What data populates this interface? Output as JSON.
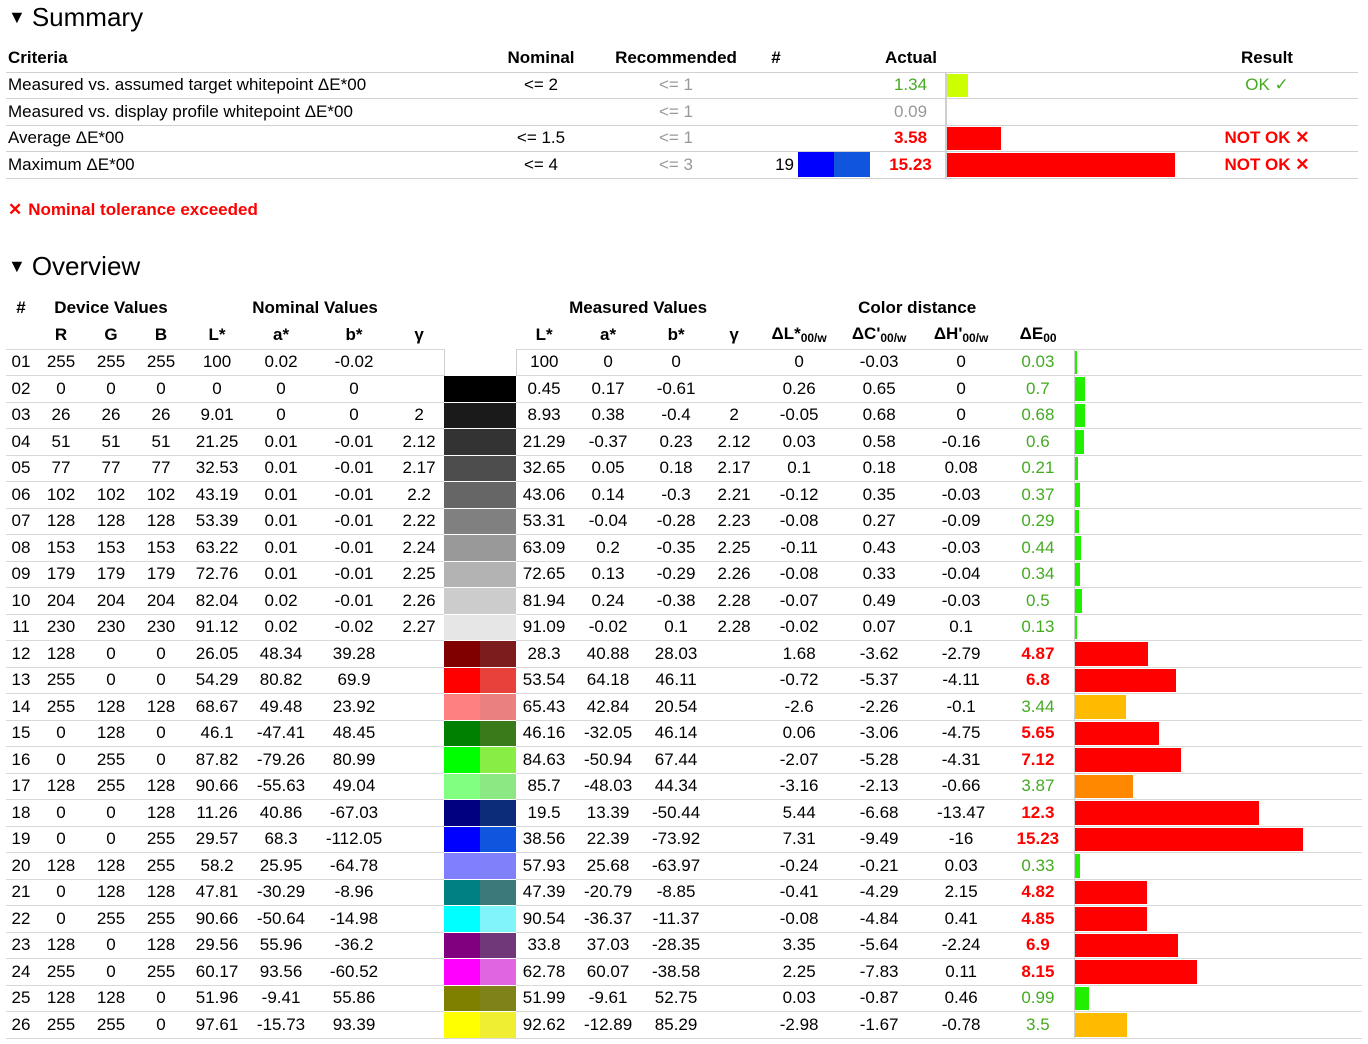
{
  "summary": {
    "heading": "Summary",
    "columns": {
      "criteria": "Criteria",
      "nominal": "Nominal",
      "recommended": "Recommended",
      "hash": "#",
      "actual": "Actual",
      "result": "Result"
    },
    "rows": [
      {
        "criteria": "Measured vs. assumed target whitepoint ΔE*00",
        "nominal": "<= 2",
        "recommended": "<= 1",
        "hash": "",
        "actual": "1.34",
        "actual_status": "ok",
        "bar_fraction": 0.09,
        "bar_color": "#ccff00",
        "result": "OK ✓",
        "result_status": "ok"
      },
      {
        "criteria": "Measured vs. display profile whitepoint ΔE*00",
        "nominal": "",
        "recommended": "<= 1",
        "hash": "",
        "actual": "0.09",
        "actual_status": "gray",
        "bar_fraction": 0.0,
        "bar_color": "#cccccc",
        "result": "",
        "result_status": ""
      },
      {
        "criteria": "Average ΔE*00",
        "nominal": "<= 1.5",
        "recommended": "<= 1",
        "hash": "",
        "actual": "3.58",
        "actual_status": "bad",
        "bar_fraction": 0.235,
        "bar_color": "#ff0000",
        "result": "NOT OK ✕",
        "result_status": "bad"
      },
      {
        "criteria": "Maximum ΔE*00",
        "nominal": "<= 4",
        "recommended": "<= 3",
        "hash": "19",
        "swatch": [
          "#0000ff",
          "#1055dd"
        ],
        "actual": "15.23",
        "actual_status": "bad",
        "bar_fraction": 1.0,
        "bar_color": "#ff0000",
        "result": "NOT OK ✕",
        "result_status": "bad"
      }
    ],
    "status_icon": "✕",
    "status_text": "Nominal tolerance exceeded"
  },
  "overview": {
    "heading": "Overview",
    "group_headers": {
      "hash": "#",
      "device": "Device Values",
      "nominal": "Nominal Values",
      "measured": "Measured Values",
      "distance": "Color distance"
    },
    "sub_headers": {
      "r": "R",
      "g": "G",
      "b": "B",
      "nl": "L*",
      "na": "a*",
      "nb": "b*",
      "ngamma": "γ",
      "ml": "L*",
      "ma": "a*",
      "mb": "b*",
      "mgamma": "γ",
      "dl": "ΔL*",
      "dc": "ΔC'",
      "dh": "ΔH'",
      "de": "ΔE",
      "sub_w": "00/w",
      "sub_de": "00"
    },
    "bar_scale_max": 15.23,
    "rows": [
      {
        "id": "01",
        "r": "255",
        "g": "255",
        "b": "255",
        "nl": "100",
        "na": "0.02",
        "nb": "-0.02",
        "ng": "",
        "sw1": "#ffffff",
        "sw2": "#ffffff",
        "ml": "100",
        "ma": "0",
        "mb": "0",
        "mg": "",
        "dl": "0",
        "dc": "-0.03",
        "dh": "0",
        "de": "0.03",
        "de_value": 0.03,
        "status": "ok",
        "bar_color": "#22ee00"
      },
      {
        "id": "02",
        "r": "0",
        "g": "0",
        "b": "0",
        "nl": "0",
        "na": "0",
        "nb": "0",
        "ng": "",
        "sw1": "#000000",
        "sw2": "#000000",
        "ml": "0.45",
        "ma": "0.17",
        "mb": "-0.61",
        "mg": "",
        "dl": "0.26",
        "dc": "0.65",
        "dh": "0",
        "de": "0.7",
        "de_value": 0.7,
        "status": "ok",
        "bar_color": "#22ee00"
      },
      {
        "id": "03",
        "r": "26",
        "g": "26",
        "b": "26",
        "nl": "9.01",
        "na": "0",
        "nb": "0",
        "ng": "2",
        "sw1": "#1a1a1a",
        "sw2": "#1a1a1a",
        "ml": "8.93",
        "ma": "0.38",
        "mb": "-0.4",
        "mg": "2",
        "dl": "-0.05",
        "dc": "0.68",
        "dh": "0",
        "de": "0.68",
        "de_value": 0.68,
        "status": "ok",
        "bar_color": "#22ee00"
      },
      {
        "id": "04",
        "r": "51",
        "g": "51",
        "b": "51",
        "nl": "21.25",
        "na": "0.01",
        "nb": "-0.01",
        "ng": "2.12",
        "sw1": "#333333",
        "sw2": "#333333",
        "ml": "21.29",
        "ma": "-0.37",
        "mb": "0.23",
        "mg": "2.12",
        "dl": "0.03",
        "dc": "0.58",
        "dh": "-0.16",
        "de": "0.6",
        "de_value": 0.6,
        "status": "ok",
        "bar_color": "#22ee00"
      },
      {
        "id": "05",
        "r": "77",
        "g": "77",
        "b": "77",
        "nl": "32.53",
        "na": "0.01",
        "nb": "-0.01",
        "ng": "2.17",
        "sw1": "#4d4d4d",
        "sw2": "#4d4d4d",
        "ml": "32.65",
        "ma": "0.05",
        "mb": "0.18",
        "mg": "2.17",
        "dl": "0.1",
        "dc": "0.18",
        "dh": "0.08",
        "de": "0.21",
        "de_value": 0.21,
        "status": "ok",
        "bar_color": "#22ee00"
      },
      {
        "id": "06",
        "r": "102",
        "g": "102",
        "b": "102",
        "nl": "43.19",
        "na": "0.01",
        "nb": "-0.01",
        "ng": "2.2",
        "sw1": "#666666",
        "sw2": "#666666",
        "ml": "43.06",
        "ma": "0.14",
        "mb": "-0.3",
        "mg": "2.21",
        "dl": "-0.12",
        "dc": "0.35",
        "dh": "-0.03",
        "de": "0.37",
        "de_value": 0.37,
        "status": "ok",
        "bar_color": "#22ee00"
      },
      {
        "id": "07",
        "r": "128",
        "g": "128",
        "b": "128",
        "nl": "53.39",
        "na": "0.01",
        "nb": "-0.01",
        "ng": "2.22",
        "sw1": "#808080",
        "sw2": "#808080",
        "ml": "53.31",
        "ma": "-0.04",
        "mb": "-0.28",
        "mg": "2.23",
        "dl": "-0.08",
        "dc": "0.27",
        "dh": "-0.09",
        "de": "0.29",
        "de_value": 0.29,
        "status": "ok",
        "bar_color": "#22ee00"
      },
      {
        "id": "08",
        "r": "153",
        "g": "153",
        "b": "153",
        "nl": "63.22",
        "na": "0.01",
        "nb": "-0.01",
        "ng": "2.24",
        "sw1": "#999999",
        "sw2": "#999999",
        "ml": "63.09",
        "ma": "0.2",
        "mb": "-0.35",
        "mg": "2.25",
        "dl": "-0.11",
        "dc": "0.43",
        "dh": "-0.03",
        "de": "0.44",
        "de_value": 0.44,
        "status": "ok",
        "bar_color": "#22ee00"
      },
      {
        "id": "09",
        "r": "179",
        "g": "179",
        "b": "179",
        "nl": "72.76",
        "na": "0.01",
        "nb": "-0.01",
        "ng": "2.25",
        "sw1": "#b3b3b3",
        "sw2": "#b3b3b3",
        "ml": "72.65",
        "ma": "0.13",
        "mb": "-0.29",
        "mg": "2.26",
        "dl": "-0.08",
        "dc": "0.33",
        "dh": "-0.04",
        "de": "0.34",
        "de_value": 0.34,
        "status": "ok",
        "bar_color": "#22ee00"
      },
      {
        "id": "10",
        "r": "204",
        "g": "204",
        "b": "204",
        "nl": "82.04",
        "na": "0.02",
        "nb": "-0.01",
        "ng": "2.26",
        "sw1": "#cccccc",
        "sw2": "#cccccc",
        "ml": "81.94",
        "ma": "0.24",
        "mb": "-0.38",
        "mg": "2.28",
        "dl": "-0.07",
        "dc": "0.49",
        "dh": "-0.03",
        "de": "0.5",
        "de_value": 0.5,
        "status": "ok",
        "bar_color": "#22ee00"
      },
      {
        "id": "11",
        "r": "230",
        "g": "230",
        "b": "230",
        "nl": "91.12",
        "na": "0.02",
        "nb": "-0.02",
        "ng": "2.27",
        "sw1": "#e6e6e6",
        "sw2": "#e6e6e6",
        "ml": "91.09",
        "ma": "-0.02",
        "mb": "0.1",
        "mg": "2.28",
        "dl": "-0.02",
        "dc": "0.07",
        "dh": "0.1",
        "de": "0.13",
        "de_value": 0.13,
        "status": "ok",
        "bar_color": "#22ee00"
      },
      {
        "id": "12",
        "r": "128",
        "g": "0",
        "b": "0",
        "nl": "26.05",
        "na": "48.34",
        "nb": "39.28",
        "ng": "",
        "sw1": "#800000",
        "sw2": "#7d1c1c",
        "ml": "28.3",
        "ma": "40.88",
        "mb": "28.03",
        "mg": "",
        "dl": "1.68",
        "dc": "-3.62",
        "dh": "-2.79",
        "de": "4.87",
        "de_value": 4.87,
        "status": "bad",
        "bar_color": "#ff0000"
      },
      {
        "id": "13",
        "r": "255",
        "g": "0",
        "b": "0",
        "nl": "54.29",
        "na": "80.82",
        "nb": "69.9",
        "ng": "",
        "sw1": "#ff0000",
        "sw2": "#e8403a",
        "ml": "53.54",
        "ma": "64.18",
        "mb": "46.11",
        "mg": "",
        "dl": "-0.72",
        "dc": "-5.37",
        "dh": "-4.11",
        "de": "6.8",
        "de_value": 6.8,
        "status": "bad",
        "bar_color": "#ff0000"
      },
      {
        "id": "14",
        "r": "255",
        "g": "128",
        "b": "128",
        "nl": "68.67",
        "na": "49.48",
        "nb": "23.92",
        "ng": "",
        "sw1": "#ff8080",
        "sw2": "#ea8080",
        "ml": "65.43",
        "ma": "42.84",
        "mb": "20.54",
        "mg": "",
        "dl": "-2.6",
        "dc": "-2.26",
        "dh": "-0.1",
        "de": "3.44",
        "de_value": 3.44,
        "status": "ok",
        "bar_color": "#ffbb00"
      },
      {
        "id": "15",
        "r": "0",
        "g": "128",
        "b": "0",
        "nl": "46.1",
        "na": "-47.41",
        "nb": "48.45",
        "ng": "",
        "sw1": "#008000",
        "sw2": "#3b7a1a",
        "ml": "46.16",
        "ma": "-32.05",
        "mb": "46.14",
        "mg": "",
        "dl": "0.06",
        "dc": "-3.06",
        "dh": "-4.75",
        "de": "5.65",
        "de_value": 5.65,
        "status": "bad",
        "bar_color": "#ff0000"
      },
      {
        "id": "16",
        "r": "0",
        "g": "255",
        "b": "0",
        "nl": "87.82",
        "na": "-79.26",
        "nb": "80.99",
        "ng": "",
        "sw1": "#00ff00",
        "sw2": "#88ee44",
        "ml": "84.63",
        "ma": "-50.94",
        "mb": "67.44",
        "mg": "",
        "dl": "-2.07",
        "dc": "-5.28",
        "dh": "-4.31",
        "de": "7.12",
        "de_value": 7.12,
        "status": "bad",
        "bar_color": "#ff0000"
      },
      {
        "id": "17",
        "r": "128",
        "g": "255",
        "b": "128",
        "nl": "90.66",
        "na": "-55.63",
        "nb": "49.04",
        "ng": "",
        "sw1": "#80ff80",
        "sw2": "#8ce882",
        "ml": "85.7",
        "ma": "-48.03",
        "mb": "44.34",
        "mg": "",
        "dl": "-3.16",
        "dc": "-2.13",
        "dh": "-0.66",
        "de": "3.87",
        "de_value": 3.87,
        "status": "ok",
        "bar_color": "#ff8800"
      },
      {
        "id": "18",
        "r": "0",
        "g": "0",
        "b": "128",
        "nl": "11.26",
        "na": "40.86",
        "nb": "-67.03",
        "ng": "",
        "sw1": "#000080",
        "sw2": "#0c2b78",
        "ml": "19.5",
        "ma": "13.39",
        "mb": "-50.44",
        "mg": "",
        "dl": "5.44",
        "dc": "-6.68",
        "dh": "-13.47",
        "de": "12.3",
        "de_value": 12.3,
        "status": "bad",
        "bar_color": "#ff0000"
      },
      {
        "id": "19",
        "r": "0",
        "g": "0",
        "b": "255",
        "nl": "29.57",
        "na": "68.3",
        "nb": "-112.05",
        "ng": "",
        "sw1": "#0000ff",
        "sw2": "#1055dd",
        "ml": "38.56",
        "ma": "22.39",
        "mb": "-73.92",
        "mg": "",
        "dl": "7.31",
        "dc": "-9.49",
        "dh": "-16",
        "de": "15.23",
        "de_value": 15.23,
        "status": "bad",
        "bar_color": "#ff0000"
      },
      {
        "id": "20",
        "r": "128",
        "g": "128",
        "b": "255",
        "nl": "58.2",
        "na": "25.95",
        "nb": "-64.78",
        "ng": "",
        "sw1": "#8080ff",
        "sw2": "#8080fb",
        "ml": "57.93",
        "ma": "25.68",
        "mb": "-63.97",
        "mg": "",
        "dl": "-0.24",
        "dc": "-0.21",
        "dh": "0.03",
        "de": "0.33",
        "de_value": 0.33,
        "status": "ok",
        "bar_color": "#22ee00"
      },
      {
        "id": "21",
        "r": "0",
        "g": "128",
        "b": "128",
        "nl": "47.81",
        "na": "-30.29",
        "nb": "-8.96",
        "ng": "",
        "sw1": "#008080",
        "sw2": "#3a7a7a",
        "ml": "47.39",
        "ma": "-20.79",
        "mb": "-8.85",
        "mg": "",
        "dl": "-0.41",
        "dc": "-4.29",
        "dh": "2.15",
        "de": "4.82",
        "de_value": 4.82,
        "status": "bad",
        "bar_color": "#ff0000"
      },
      {
        "id": "22",
        "r": "0",
        "g": "255",
        "b": "255",
        "nl": "90.66",
        "na": "-50.64",
        "nb": "-14.98",
        "ng": "",
        "sw1": "#00ffff",
        "sw2": "#80f4f8",
        "ml": "90.54",
        "ma": "-36.37",
        "mb": "-11.37",
        "mg": "",
        "dl": "-0.08",
        "dc": "-4.84",
        "dh": "0.41",
        "de": "4.85",
        "de_value": 4.85,
        "status": "bad",
        "bar_color": "#ff0000"
      },
      {
        "id": "23",
        "r": "128",
        "g": "0",
        "b": "128",
        "nl": "29.56",
        "na": "55.96",
        "nb": "-36.2",
        "ng": "",
        "sw1": "#800080",
        "sw2": "#713879",
        "ml": "33.8",
        "ma": "37.03",
        "mb": "-28.35",
        "mg": "",
        "dl": "3.35",
        "dc": "-5.64",
        "dh": "-2.24",
        "de": "6.9",
        "de_value": 6.9,
        "status": "bad",
        "bar_color": "#ff0000"
      },
      {
        "id": "24",
        "r": "255",
        "g": "0",
        "b": "255",
        "nl": "60.17",
        "na": "93.56",
        "nb": "-60.52",
        "ng": "",
        "sw1": "#ff00ff",
        "sw2": "#e065e0",
        "ml": "62.78",
        "ma": "60.07",
        "mb": "-38.58",
        "mg": "",
        "dl": "2.25",
        "dc": "-7.83",
        "dh": "0.11",
        "de": "8.15",
        "de_value": 8.15,
        "status": "bad",
        "bar_color": "#ff0000"
      },
      {
        "id": "25",
        "r": "128",
        "g": "128",
        "b": "0",
        "nl": "51.96",
        "na": "-9.41",
        "nb": "55.86",
        "ng": "",
        "sw1": "#808000",
        "sw2": "#7f8218",
        "ml": "51.99",
        "ma": "-9.61",
        "mb": "52.75",
        "mg": "",
        "dl": "0.03",
        "dc": "-0.87",
        "dh": "0.46",
        "de": "0.99",
        "de_value": 0.99,
        "status": "ok",
        "bar_color": "#22ee00"
      },
      {
        "id": "26",
        "r": "255",
        "g": "255",
        "b": "0",
        "nl": "97.61",
        "na": "-15.73",
        "nb": "93.39",
        "ng": "",
        "sw1": "#ffff00",
        "sw2": "#f0ee30",
        "ml": "92.62",
        "ma": "-12.89",
        "mb": "85.29",
        "mg": "",
        "dl": "-2.98",
        "dc": "-1.67",
        "dh": "-0.78",
        "de": "3.5",
        "de_value": 3.5,
        "status": "ok",
        "bar_color": "#ffbb00"
      }
    ]
  }
}
